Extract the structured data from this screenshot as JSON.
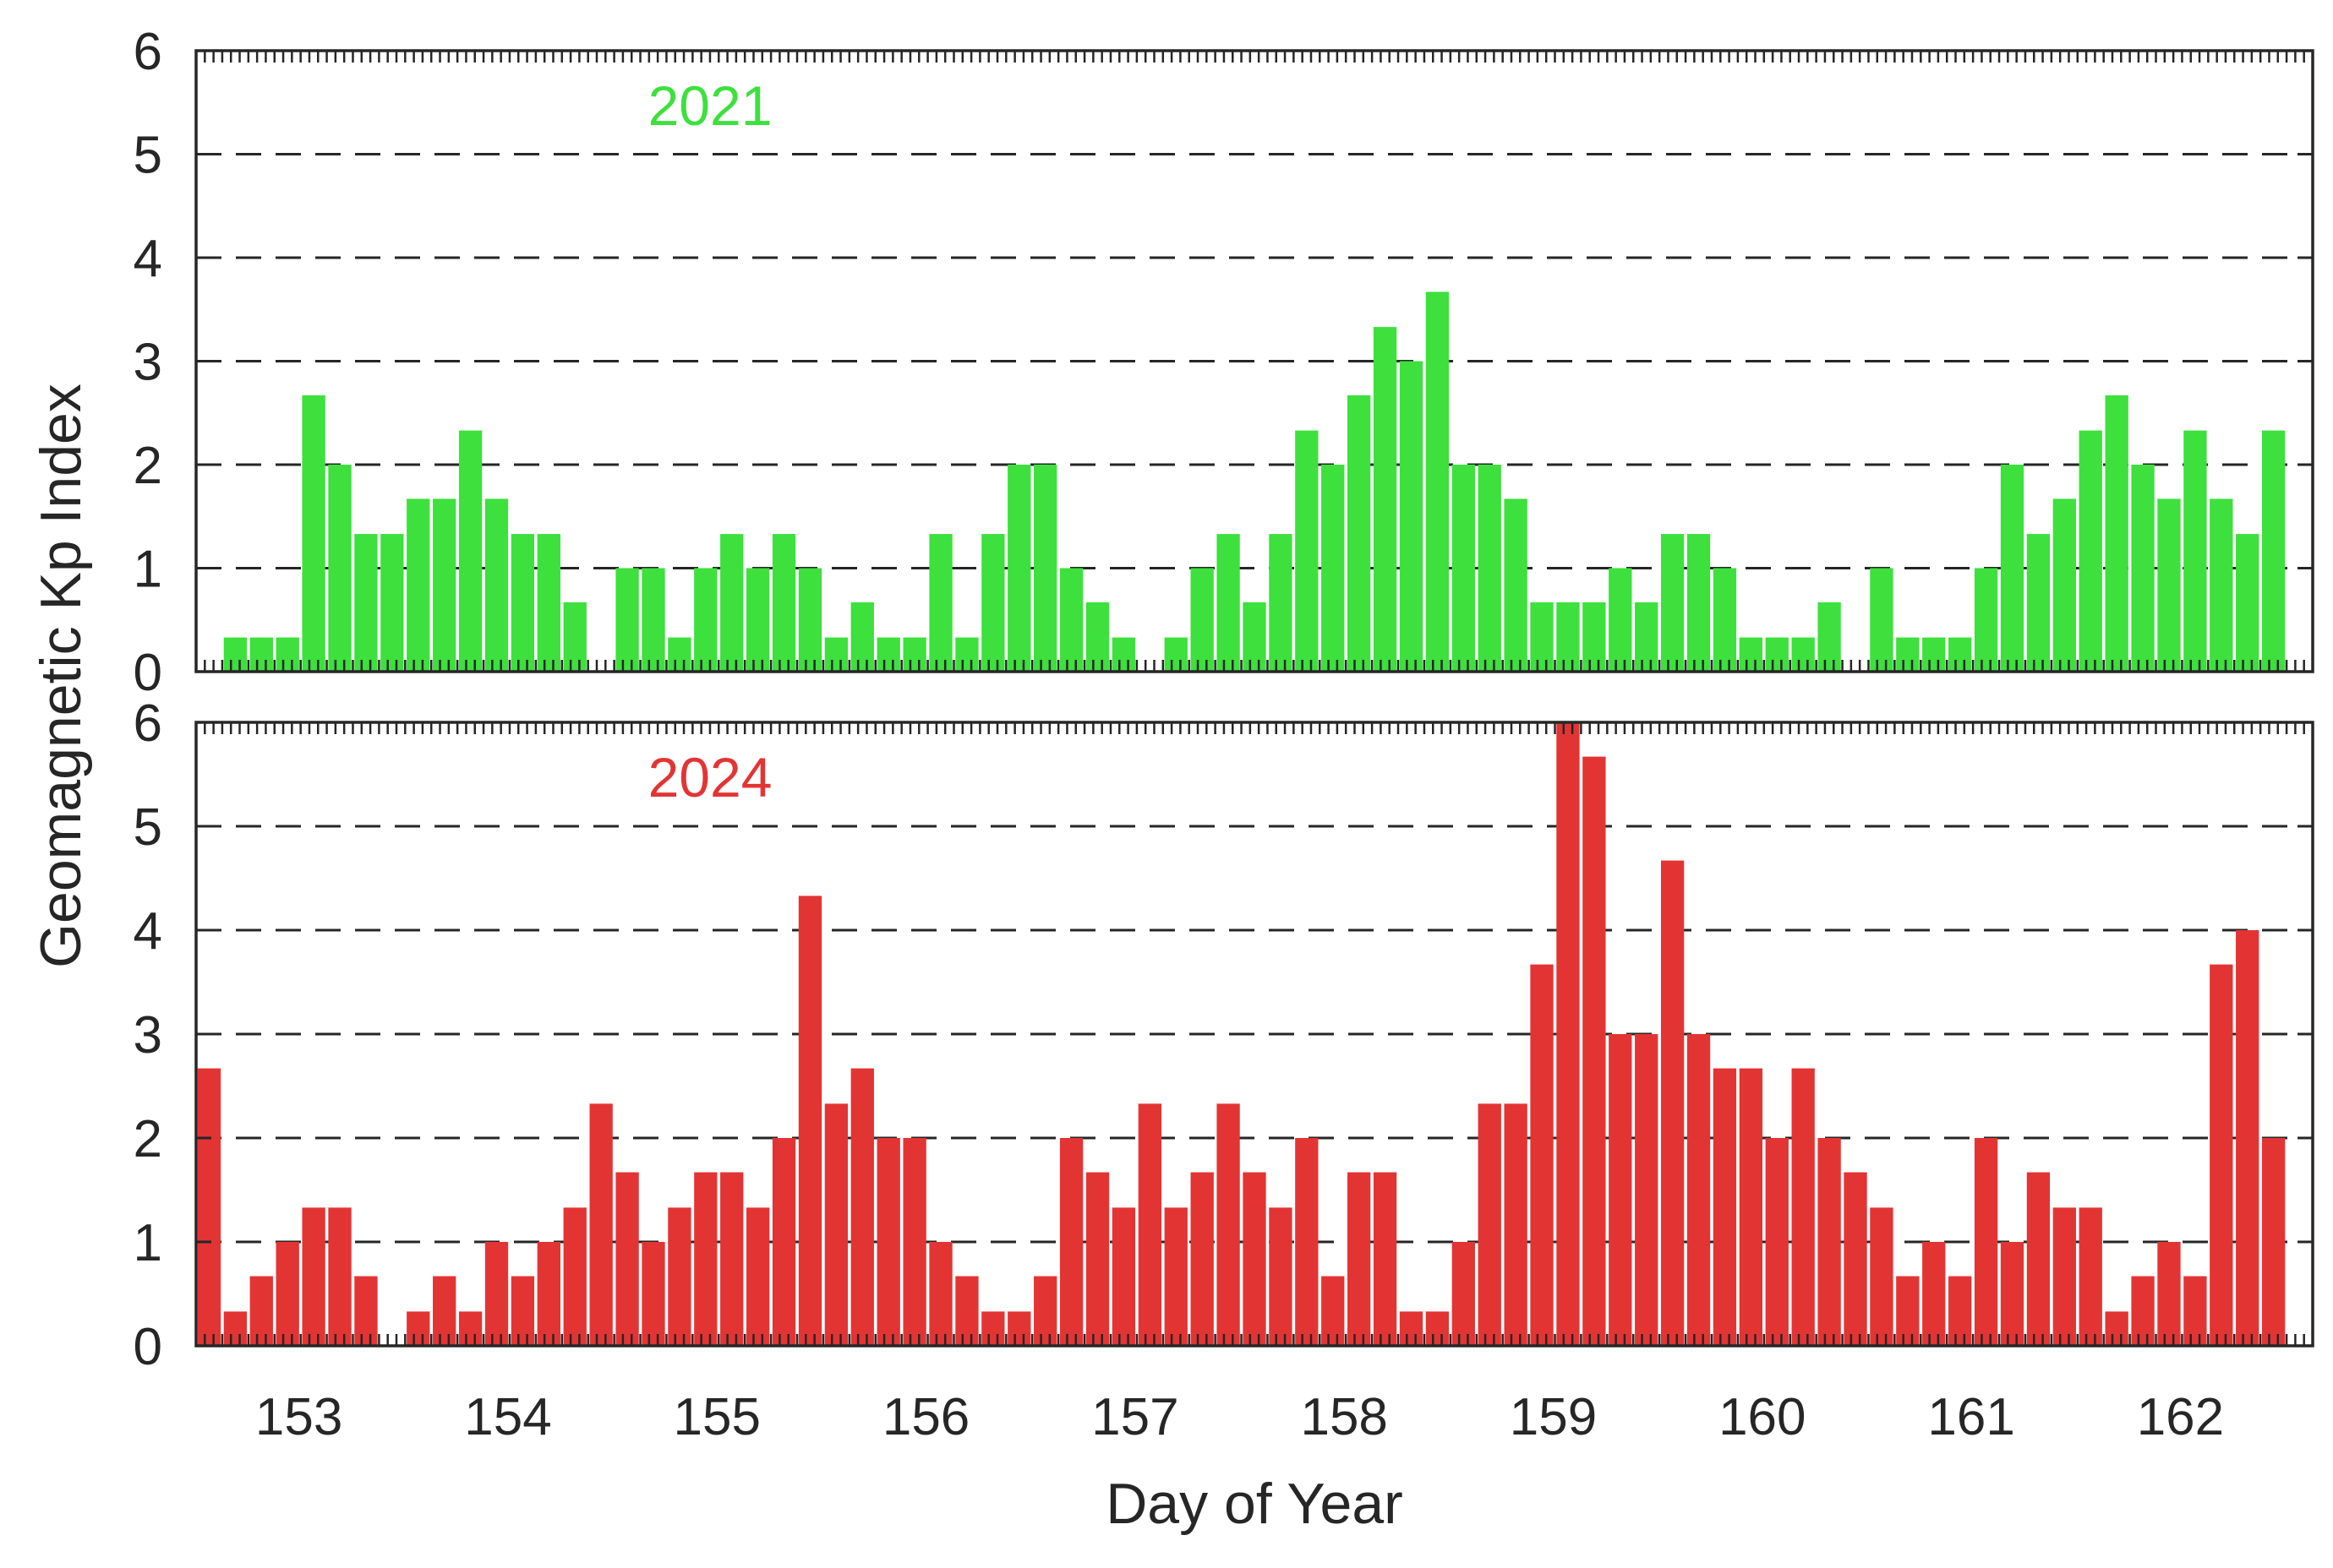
{
  "chart_data": {
    "type": "bar",
    "x_axis_label": "Day of Year",
    "y_axis_label": "Geomagnetic Kp Index",
    "x_ticks": [
      153,
      154,
      155,
      156,
      157,
      158,
      159,
      160,
      161,
      162
    ],
    "xlim": [
      152.5,
      162.625
    ],
    "ylim": [
      0,
      6
    ],
    "y_ticks": [
      0,
      1,
      2,
      3,
      4,
      5,
      6
    ],
    "grid": "horizontal dashed",
    "bar_interval_days": 0.125,
    "first_bar_center": 152.5625,
    "panels": [
      {
        "label": "2021",
        "color": "#3de03d",
        "values": [
          0,
          0.33,
          0.33,
          0.33,
          2.67,
          2,
          1.33,
          1.33,
          1.67,
          1.67,
          2.33,
          1.67,
          1.33,
          1.33,
          0.67,
          0,
          1,
          1,
          0.33,
          1,
          1.33,
          1,
          1.33,
          1,
          0.33,
          0.67,
          0.33,
          0.33,
          1.33,
          0.33,
          1.33,
          2,
          2,
          1,
          0.67,
          0.33,
          0,
          0.33,
          1,
          1.33,
          0.67,
          1.33,
          2.33,
          2,
          2.67,
          3.33,
          3,
          3.67,
          2,
          2,
          1.67,
          0.67,
          0.67,
          0.67,
          1,
          0.67,
          1.33,
          1.33,
          1,
          0.33,
          0.33,
          0.33,
          0.67,
          0,
          1,
          0.33,
          0.33,
          0.33,
          1,
          2,
          1.33,
          1.67,
          2.33,
          2.67,
          2,
          1.67,
          2.33,
          1.67,
          1.33,
          2.33
        ]
      },
      {
        "label": "2024",
        "color": "#e33434",
        "values": [
          2.67,
          0.33,
          0.67,
          1,
          1.33,
          1.33,
          0.67,
          0,
          0.33,
          0.67,
          0.33,
          1,
          0.67,
          1,
          1.33,
          2.33,
          1.67,
          1,
          1.33,
          1.67,
          1.67,
          1.33,
          2,
          4.33,
          2.33,
          2.67,
          2,
          2,
          1,
          0.67,
          0.33,
          0.33,
          0.67,
          2,
          1.67,
          1.33,
          2.33,
          1.33,
          1.67,
          2.33,
          1.67,
          1.33,
          2,
          0.67,
          1.67,
          1.67,
          0.33,
          0.33,
          1,
          2.33,
          2.33,
          3.67,
          6,
          5.67,
          3,
          3,
          4.67,
          3,
          2.67,
          2.67,
          2,
          2.67,
          2,
          1.67,
          1.33,
          0.67,
          1,
          0.67,
          2,
          1,
          1.67,
          1.33,
          1.33,
          0.33,
          0.67,
          1,
          0.67,
          3.67,
          4,
          2
        ]
      }
    ]
  }
}
